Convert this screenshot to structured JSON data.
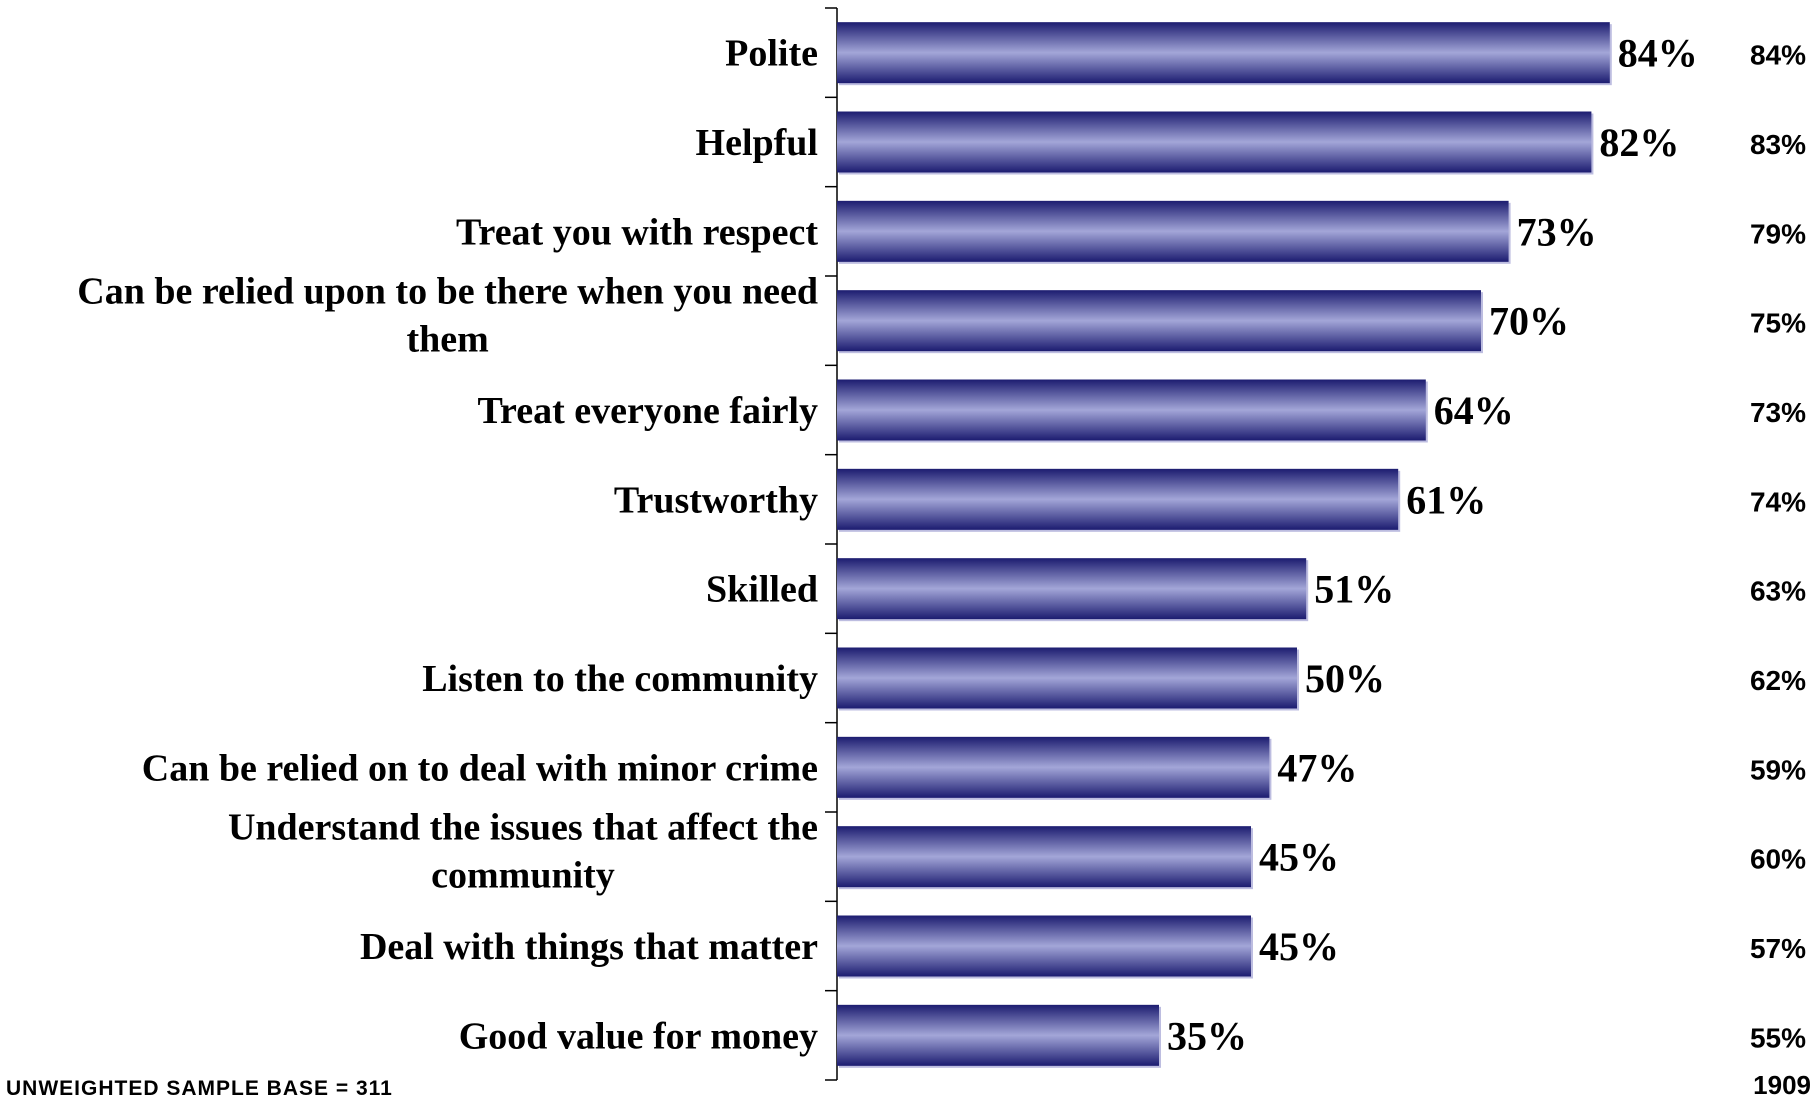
{
  "chart_data": {
    "type": "bar",
    "orientation": "horizontal",
    "categories": [
      "Polite",
      "Helpful",
      "Treat you with respect",
      "Can be relied upon to be there when you need them",
      "Treat everyone fairly",
      "Trustworthy",
      "Skilled",
      "Listen to the community",
      "Can be relied on to deal with minor crime",
      "Understand the issues that affect the community",
      "Deal with things that matter",
      "Good value for money"
    ],
    "category_lines": [
      [
        "Polite"
      ],
      [
        "Helpful"
      ],
      [
        "Treat you with respect"
      ],
      [
        "Can be relied upon to be there when you need",
        "them"
      ],
      [
        "Treat everyone fairly"
      ],
      [
        "Trustworthy"
      ],
      [
        "Skilled"
      ],
      [
        "Listen to the community"
      ],
      [
        "Can be relied on to deal with minor crime"
      ],
      [
        "Understand the issues that affect the",
        "community"
      ],
      [
        "Deal with things that matter"
      ],
      [
        "Good value for money"
      ]
    ],
    "values": [
      84,
      82,
      73,
      70,
      64,
      61,
      51,
      50,
      47,
      45,
      45,
      35
    ],
    "value_labels": [
      "84%",
      "82%",
      "73%",
      "70%",
      "64%",
      "61%",
      "51%",
      "50%",
      "47%",
      "45%",
      "45%",
      "35%"
    ],
    "comparison_values": [
      84,
      83,
      79,
      75,
      73,
      74,
      63,
      62,
      59,
      60,
      57,
      55
    ],
    "comparison_labels": [
      "84%",
      "83%",
      "79%",
      "75%",
      "73%",
      "74%",
      "63%",
      "62%",
      "59%",
      "60%",
      "57%",
      "55%"
    ],
    "comparison_base": "1909",
    "xlim": [
      0,
      100
    ],
    "grid": false,
    "bar_color": "#7f82c4",
    "bar_color_dark": "#1c1c70",
    "bar_color_light": "#a3a6d8"
  },
  "footer": {
    "sample_base": "UNWEIGHTED SAMPLE BASE = 311"
  }
}
